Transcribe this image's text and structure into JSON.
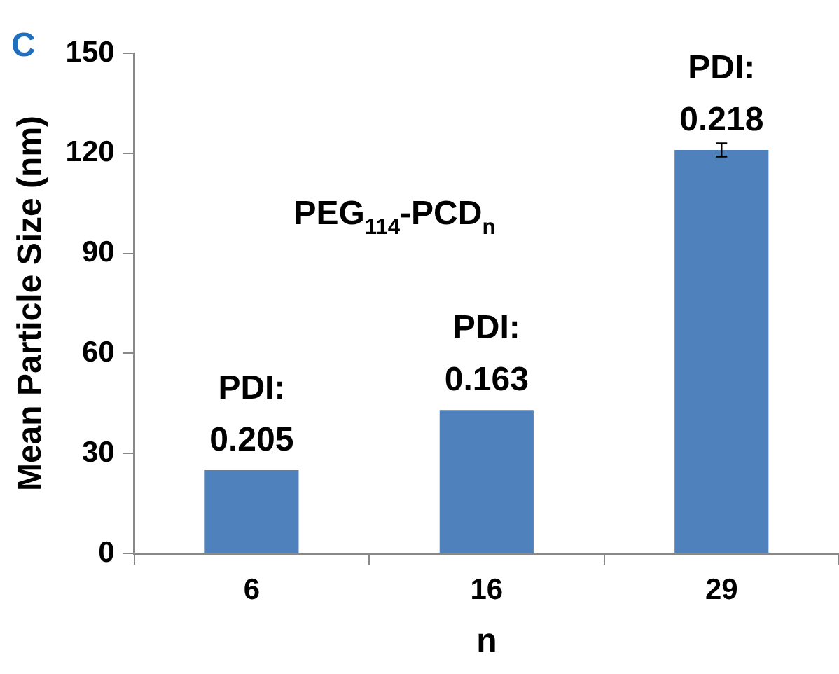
{
  "chart_data": {
    "type": "bar",
    "xlabel": "n",
    "ylabel": "Mean Particle Size (nm)",
    "categories": [
      "6",
      "16",
      "29"
    ],
    "values": [
      25,
      43,
      121
    ],
    "color": "#4f81bd",
    "errors": [
      null,
      null,
      2
    ],
    "ylim": [
      0,
      150
    ],
    "yticks": [
      0,
      30,
      60,
      90,
      120,
      150
    ],
    "grid": false,
    "legend": false,
    "annotations": [
      "C",
      "PEG$_{114}$-PCD$_{n}$",
      {
        "text": "PDI:\n0.205",
        "x": "6",
        "y": 25
      },
      {
        "text": "PDI:\n0.163",
        "x": "16",
        "y": 43
      },
      {
        "text": "PDI:\n0.218",
        "x": "29",
        "y": 121
      }
    ]
  }
}
